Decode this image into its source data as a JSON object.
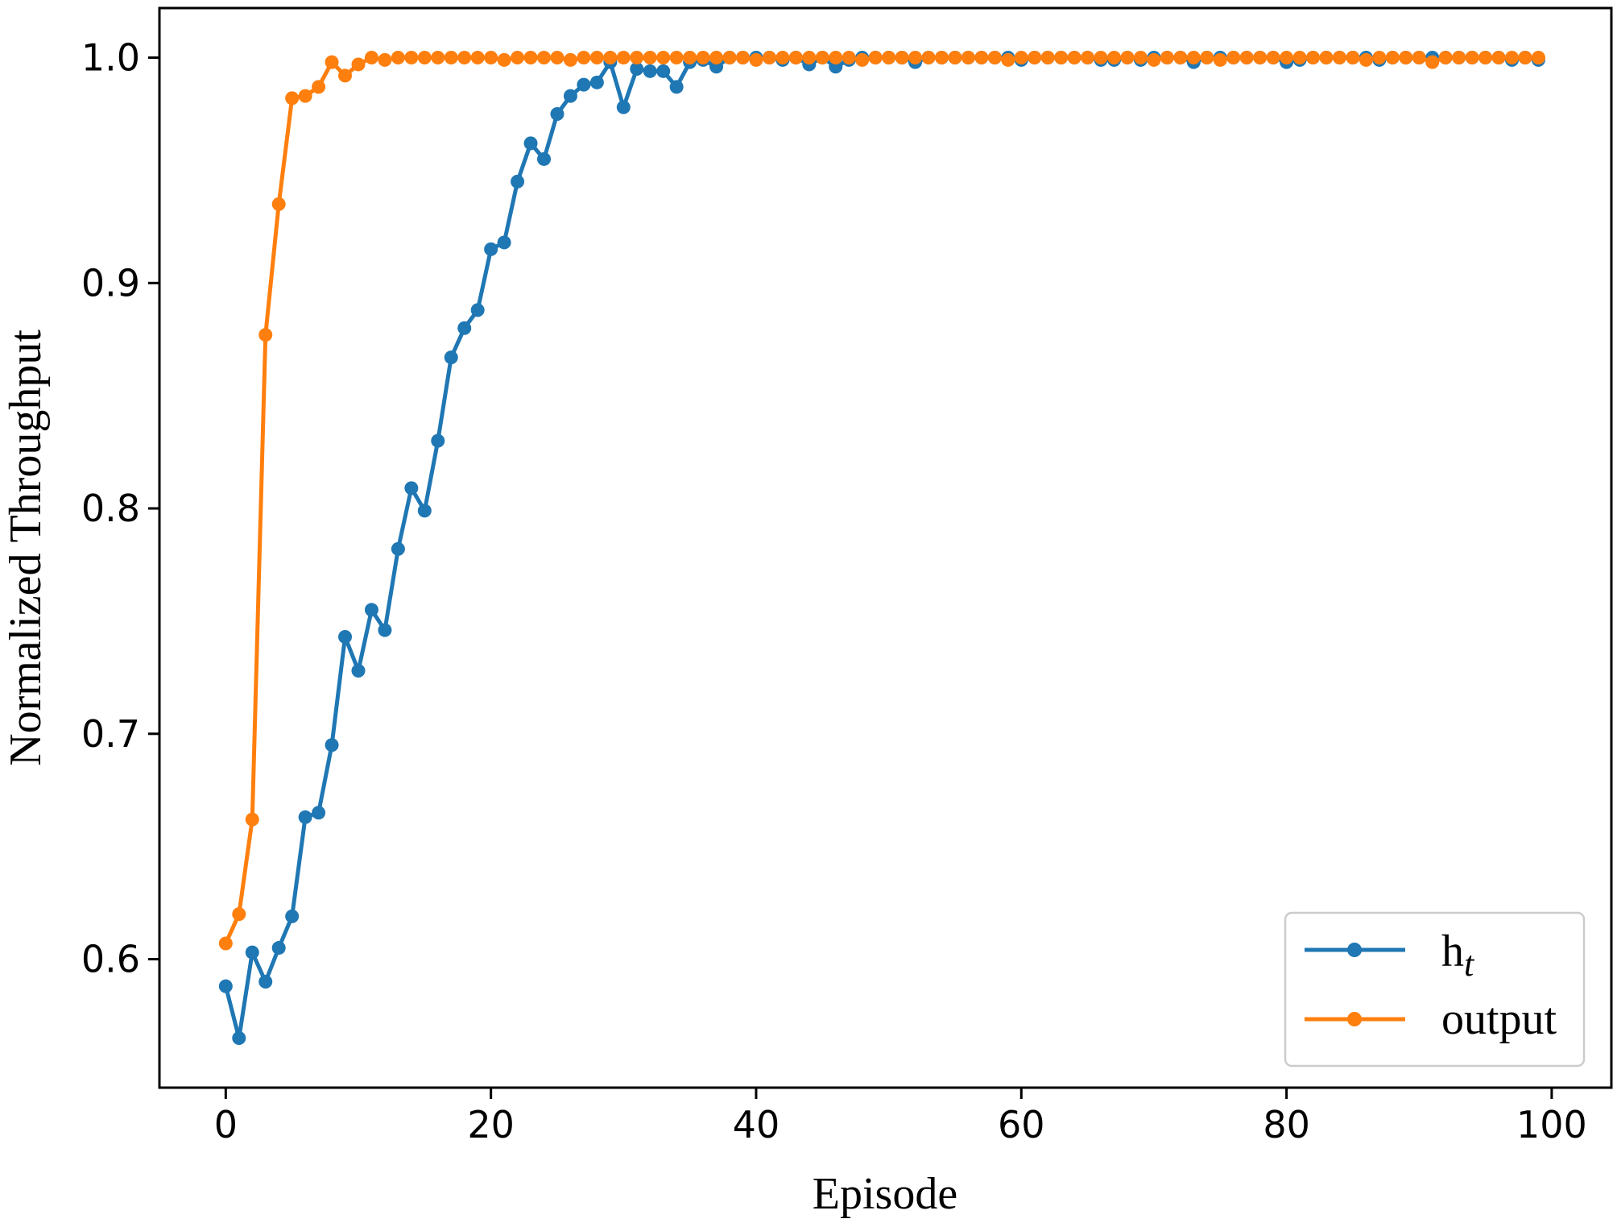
{
  "chart_data": {
    "type": "line",
    "title": "",
    "xlabel": "Episode",
    "ylabel": "Normalized Throughput",
    "xlim": [
      -5,
      104.5
    ],
    "ylim": [
      0.543,
      1.022
    ],
    "xticks": [
      0,
      20,
      40,
      60,
      80,
      100
    ],
    "yticks": [
      0.6,
      0.7,
      0.8,
      0.9,
      1.0
    ],
    "xtick_labels": [
      "0",
      "20",
      "40",
      "60",
      "80",
      "100"
    ],
    "ytick_labels": [
      "0.6",
      "0.7",
      "0.8",
      "0.9",
      "1.0"
    ],
    "grid": false,
    "legend_position": "bottom-right",
    "legend": {
      "ht_base": "h",
      "ht_sub": "t",
      "output": "output"
    },
    "colors": {
      "ht": "#1f77b4",
      "output": "#ff7f0e"
    },
    "x": [
      0,
      1,
      2,
      3,
      4,
      5,
      6,
      7,
      8,
      9,
      10,
      11,
      12,
      13,
      14,
      15,
      16,
      17,
      18,
      19,
      20,
      21,
      22,
      23,
      24,
      25,
      26,
      27,
      28,
      29,
      30,
      31,
      32,
      33,
      34,
      35,
      36,
      37,
      38,
      39,
      40,
      41,
      42,
      43,
      44,
      45,
      46,
      47,
      48,
      49,
      50,
      51,
      52,
      53,
      54,
      55,
      56,
      57,
      58,
      59,
      60,
      61,
      62,
      63,
      64,
      65,
      66,
      67,
      68,
      69,
      70,
      71,
      72,
      73,
      74,
      75,
      76,
      77,
      78,
      79,
      80,
      81,
      82,
      83,
      84,
      85,
      86,
      87,
      88,
      89,
      90,
      91,
      92,
      93,
      94,
      95,
      96,
      97,
      98,
      99
    ],
    "series": [
      {
        "name": "h_t",
        "values": [
          0.588,
          0.565,
          0.603,
          0.59,
          0.605,
          0.619,
          0.663,
          0.665,
          0.695,
          0.743,
          0.728,
          0.755,
          0.746,
          0.782,
          0.809,
          0.799,
          0.83,
          0.867,
          0.88,
          0.888,
          0.915,
          0.918,
          0.945,
          0.962,
          0.955,
          0.975,
          0.983,
          0.988,
          0.989,
          0.998,
          0.978,
          0.995,
          0.994,
          0.994,
          0.987,
          0.998,
          0.999,
          0.996,
          1.0,
          1.0,
          1.0,
          1.0,
          0.999,
          1.0,
          0.997,
          1.0,
          0.996,
          0.999,
          1.0,
          1.0,
          1.0,
          1.0,
          0.998,
          1.0,
          1.0,
          1.0,
          1.0,
          1.0,
          1.0,
          1.0,
          0.999,
          1.0,
          1.0,
          1.0,
          1.0,
          1.0,
          0.999,
          0.999,
          1.0,
          0.999,
          1.0,
          1.0,
          1.0,
          0.998,
          1.0,
          1.0,
          1.0,
          1.0,
          1.0,
          1.0,
          0.998,
          0.999,
          1.0,
          1.0,
          1.0,
          1.0,
          1.0,
          0.999,
          1.0,
          1.0,
          1.0,
          1.0,
          1.0,
          1.0,
          1.0,
          1.0,
          1.0,
          0.999,
          1.0,
          0.999
        ]
      },
      {
        "name": "output",
        "values": [
          0.607,
          0.62,
          0.662,
          0.877,
          0.935,
          0.982,
          0.983,
          0.987,
          0.998,
          0.992,
          0.997,
          1.0,
          0.999,
          1.0,
          1.0,
          1.0,
          1.0,
          1.0,
          1.0,
          1.0,
          1.0,
          0.999,
          1.0,
          1.0,
          1.0,
          1.0,
          0.999,
          1.0,
          1.0,
          1.0,
          1.0,
          1.0,
          1.0,
          1.0,
          1.0,
          1.0,
          1.0,
          1.0,
          1.0,
          1.0,
          0.999,
          1.0,
          1.0,
          1.0,
          1.0,
          1.0,
          1.0,
          1.0,
          0.999,
          1.0,
          1.0,
          1.0,
          1.0,
          1.0,
          1.0,
          1.0,
          1.0,
          1.0,
          1.0,
          0.999,
          1.0,
          1.0,
          1.0,
          1.0,
          1.0,
          1.0,
          1.0,
          1.0,
          1.0,
          1.0,
          0.999,
          1.0,
          1.0,
          1.0,
          1.0,
          0.999,
          1.0,
          1.0,
          1.0,
          1.0,
          1.0,
          1.0,
          1.0,
          1.0,
          1.0,
          1.0,
          0.999,
          1.0,
          1.0,
          1.0,
          1.0,
          0.998,
          1.0,
          1.0,
          1.0,
          1.0,
          1.0,
          1.0,
          1.0,
          1.0
        ]
      }
    ]
  }
}
